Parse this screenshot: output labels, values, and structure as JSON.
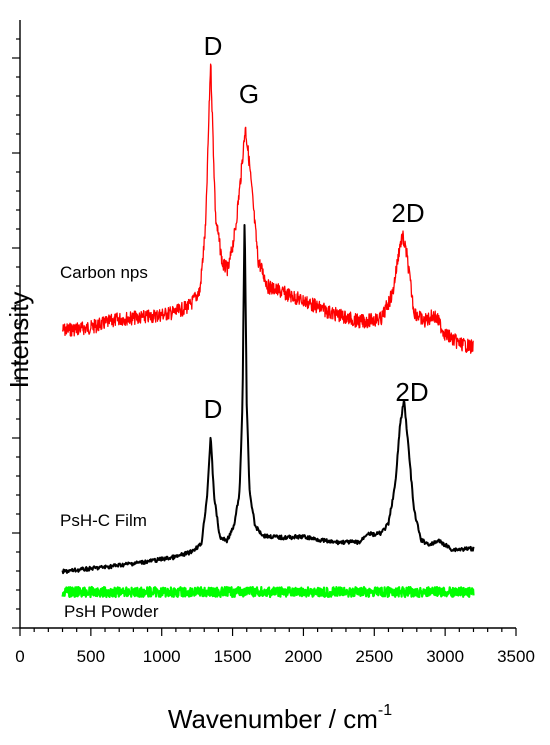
{
  "chart_data": {
    "type": "line",
    "xlabel": "Wavenumber / cm",
    "xlabel_superscript": "-1",
    "ylabel": "Intensity",
    "xlim": [
      0,
      3500
    ],
    "x_ticks": [
      "0",
      "500",
      "1000",
      "1500",
      "2000",
      "2500",
      "3000",
      "3500"
    ],
    "y_ticks_shown": false,
    "grid": false,
    "legend": "inline-labels",
    "series": [
      {
        "name": "Carbon nps",
        "color": "#ff0000",
        "x": [
          300,
          500,
          700,
          900,
          1100,
          1200,
          1270,
          1310,
          1345,
          1380,
          1430,
          1470,
          1520,
          1560,
          1590,
          1620,
          1680,
          1750,
          1850,
          2000,
          2200,
          2400,
          2550,
          2630,
          2680,
          2700,
          2730,
          2780,
          2850,
          2920,
          2950,
          3000,
          3100,
          3200
        ],
        "values": [
          0.26,
          0.29,
          0.38,
          0.4,
          0.45,
          0.52,
          0.68,
          1.35,
          3.1,
          1.45,
          0.95,
          0.9,
          1.32,
          1.9,
          2.4,
          2.0,
          1.0,
          0.72,
          0.66,
          0.57,
          0.44,
          0.35,
          0.38,
          0.65,
          1.15,
          1.25,
          1.05,
          0.46,
          0.35,
          0.42,
          0.36,
          0.22,
          0.12,
          0.08
        ]
      },
      {
        "name": "PsH-C Film",
        "color": "#000000",
        "x": [
          300,
          600,
          900,
          1100,
          1200,
          1280,
          1320,
          1345,
          1370,
          1410,
          1460,
          1510,
          1550,
          1570,
          1585,
          1600,
          1620,
          1660,
          1720,
          1850,
          2000,
          2200,
          2400,
          2450,
          2500,
          2550,
          2600,
          2650,
          2680,
          2710,
          2740,
          2780,
          2830,
          2900,
          2950,
          3050,
          3200
        ],
        "values": [
          0.08,
          0.13,
          0.19,
          0.24,
          0.29,
          0.38,
          0.9,
          1.55,
          0.9,
          0.45,
          0.42,
          0.57,
          0.95,
          1.9,
          4.0,
          1.9,
          0.95,
          0.57,
          0.47,
          0.45,
          0.46,
          0.4,
          0.4,
          0.5,
          0.48,
          0.5,
          0.6,
          1.05,
          1.65,
          1.95,
          1.45,
          0.75,
          0.42,
          0.37,
          0.42,
          0.32,
          0.33
        ]
      },
      {
        "name": "PsH Powder",
        "color": "#00ff00",
        "x": [
          300,
          3200
        ],
        "values": [
          0.1,
          0.1
        ]
      }
    ],
    "annotations": [
      "D",
      "G",
      "2D",
      "D",
      "2D"
    ]
  }
}
